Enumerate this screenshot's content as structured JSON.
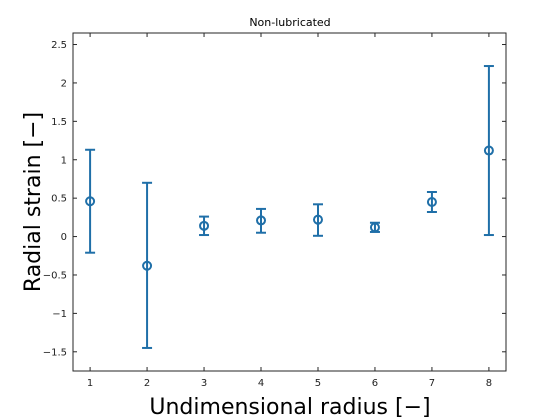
{
  "chart_data": {
    "type": "scatter",
    "title": "Non-lubricated",
    "xlabel": "Undimensional radius [−]",
    "ylabel": "Radial strain [−]",
    "xlim": [
      0.7,
      8.3
    ],
    "ylim": [
      -1.75,
      2.65
    ],
    "x_ticks": [
      "1",
      "2",
      "3",
      "4",
      "5",
      "6",
      "7",
      "8"
    ],
    "y_ticks": [
      "2.5",
      "2",
      "1.5",
      "1",
      "0.5",
      "0",
      "−0.5",
      "−1",
      "−1.5"
    ],
    "grid": false,
    "color": "#1f6fa8",
    "series": [
      {
        "x": [
          1,
          2,
          3,
          4,
          5,
          6,
          7,
          8
        ],
        "y": [
          0.46,
          -0.38,
          0.14,
          0.21,
          0.22,
          0.12,
          0.45,
          1.12
        ],
        "error_low": [
          -0.21,
          -1.45,
          0.02,
          0.05,
          0.01,
          0.06,
          0.32,
          0.02
        ],
        "error_high": [
          1.13,
          0.7,
          0.26,
          0.36,
          0.42,
          0.18,
          0.58,
          2.22
        ]
      }
    ]
  }
}
